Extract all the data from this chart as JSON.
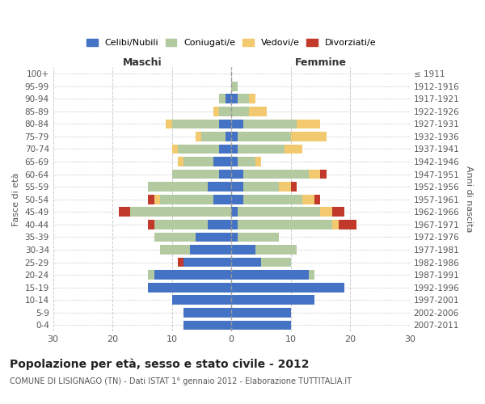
{
  "age_groups": [
    "0-4",
    "5-9",
    "10-14",
    "15-19",
    "20-24",
    "25-29",
    "30-34",
    "35-39",
    "40-44",
    "45-49",
    "50-54",
    "55-59",
    "60-64",
    "65-69",
    "70-74",
    "75-79",
    "80-84",
    "85-89",
    "90-94",
    "95-99",
    "100+"
  ],
  "birth_years": [
    "2007-2011",
    "2002-2006",
    "1997-2001",
    "1992-1996",
    "1987-1991",
    "1982-1986",
    "1977-1981",
    "1972-1976",
    "1967-1971",
    "1962-1966",
    "1957-1961",
    "1952-1956",
    "1947-1951",
    "1942-1946",
    "1937-1941",
    "1932-1936",
    "1927-1931",
    "1922-1926",
    "1917-1921",
    "1912-1916",
    "≤ 1911"
  ],
  "colors": {
    "celibi": "#4472c4",
    "coniugati": "#b3c9a0",
    "vedovi": "#f2c96e",
    "divorziati": "#c0392b"
  },
  "maschi": {
    "celibi": [
      8,
      8,
      10,
      14,
      13,
      8,
      7,
      6,
      4,
      0,
      3,
      4,
      2,
      3,
      2,
      1,
      2,
      0,
      1,
      0,
      0
    ],
    "coniugati": [
      0,
      0,
      0,
      0,
      1,
      0,
      5,
      7,
      9,
      17,
      9,
      10,
      8,
      5,
      7,
      4,
      8,
      2,
      1,
      0,
      0
    ],
    "vedovi": [
      0,
      0,
      0,
      0,
      0,
      0,
      0,
      0,
      0,
      0,
      1,
      0,
      0,
      1,
      1,
      1,
      1,
      1,
      0,
      0,
      0
    ],
    "divorziati": [
      0,
      0,
      0,
      0,
      0,
      1,
      0,
      0,
      1,
      2,
      1,
      0,
      0,
      0,
      0,
      0,
      0,
      0,
      0,
      0,
      0
    ]
  },
  "femmine": {
    "celibi": [
      10,
      10,
      14,
      19,
      13,
      5,
      4,
      1,
      1,
      1,
      2,
      2,
      2,
      1,
      1,
      1,
      2,
      0,
      1,
      0,
      0
    ],
    "coniugati": [
      0,
      0,
      0,
      0,
      1,
      5,
      7,
      7,
      16,
      14,
      10,
      6,
      11,
      3,
      8,
      9,
      9,
      3,
      2,
      1,
      0
    ],
    "vedovi": [
      0,
      0,
      0,
      0,
      0,
      0,
      0,
      0,
      1,
      2,
      2,
      2,
      2,
      1,
      3,
      6,
      4,
      3,
      1,
      0,
      0
    ],
    "divorziati": [
      0,
      0,
      0,
      0,
      0,
      0,
      0,
      0,
      3,
      2,
      1,
      1,
      1,
      0,
      0,
      0,
      0,
      0,
      0,
      0,
      0
    ]
  },
  "xlim": 30,
  "title": "Popolazione per età, sesso e stato civile - 2012",
  "subtitle": "COMUNE DI LISIGNAGO (TN) - Dati ISTAT 1° gennaio 2012 - Elaborazione TUTTITALIA.IT",
  "xlabel_left": "Maschi",
  "xlabel_right": "Femmine",
  "ylabel_left": "Fasce di età",
  "ylabel_right": "Anni di nascita",
  "legend_labels": [
    "Celibi/Nubili",
    "Coniugati/e",
    "Vedovi/e",
    "Divorziati/e"
  ]
}
